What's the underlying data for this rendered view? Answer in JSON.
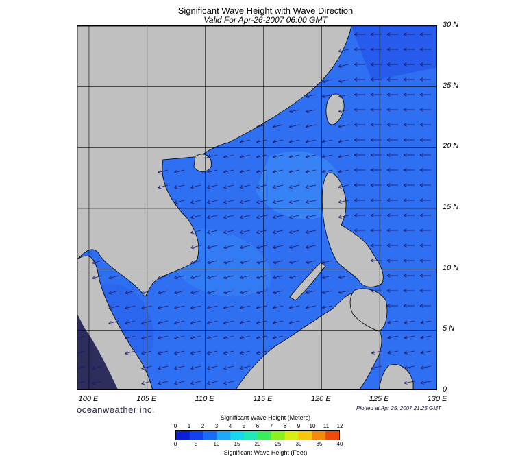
{
  "title": "Significant Wave Height with Wave Direction",
  "subtitle": "Valid For Apr-26-2007 06:00 GMT",
  "brand": "oceanweather inc.",
  "plotted": "Plotted at Apr 25, 2007 21:25 GMT",
  "lat_labels": [
    "30 N",
    "25 N",
    "20 N",
    "15 N",
    "10 N",
    "5 N",
    "0"
  ],
  "lon_labels": [
    "100 E",
    "105 E",
    "110 E",
    "115 E",
    "120 E",
    "125 E",
    "130 E"
  ],
  "colorbar": {
    "title": "Significant Wave Height (Meters)",
    "footer": "Significant Wave Height (Feet)",
    "meters": [
      "0",
      "1",
      "2",
      "3",
      "4",
      "5",
      "6",
      "7",
      "8",
      "9",
      "10",
      "11",
      "12"
    ],
    "feet": [
      "0",
      "5",
      "10",
      "15",
      "20",
      "25",
      "30",
      "35",
      "40"
    ],
    "colors": [
      "#0a1fd6",
      "#1240ee",
      "#1b6cf5",
      "#1da9f7",
      "#17d6ee",
      "#20e8b6",
      "#39ec5c",
      "#8af01e",
      "#d7ee14",
      "#f6c60e",
      "#f48a0c",
      "#ef4a0a"
    ]
  },
  "map": {
    "lon_range": [
      99,
      130
    ],
    "lat_range": [
      0,
      30
    ],
    "land_color": "#c0c0c0",
    "ocean_color": "#2f6ff2",
    "grid": true,
    "arrow_color": "#1a1a6a"
  }
}
